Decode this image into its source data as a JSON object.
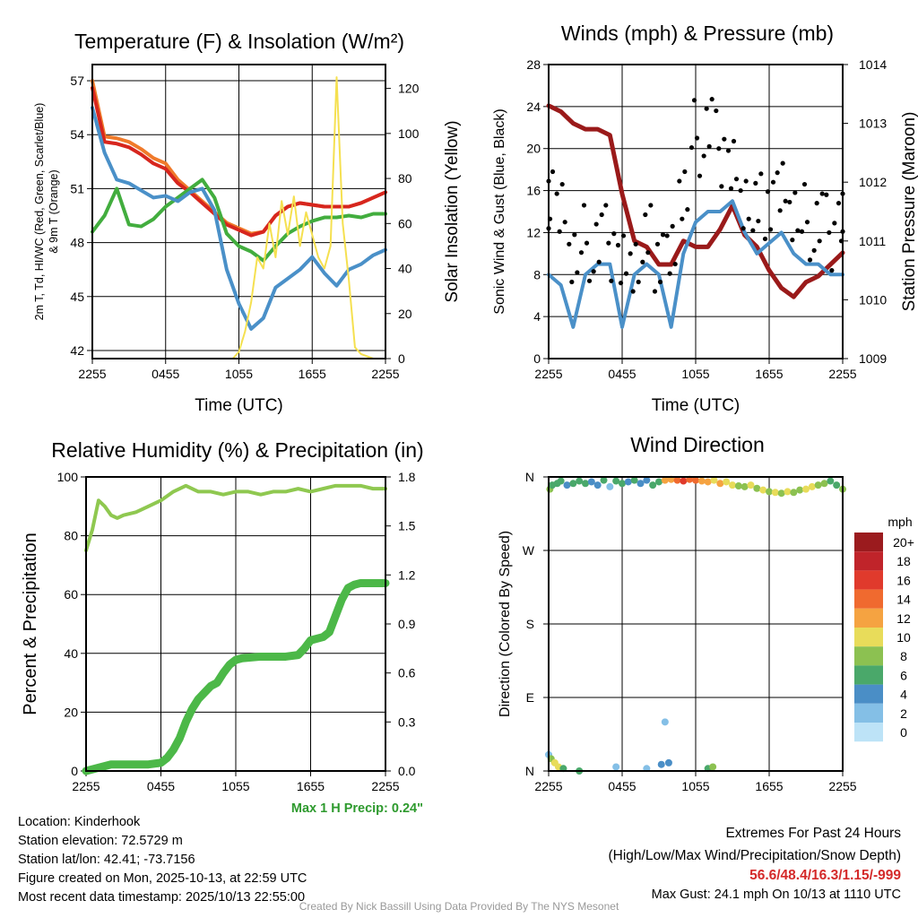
{
  "colors": {
    "red": "#d7261e",
    "orange": "#f07a2a",
    "green": "#42ad3e",
    "blue": "#4a90c8",
    "yellow": "#f5e050",
    "maroon": "#9a1a1a",
    "gust": "#000000",
    "rh": "#8fc850",
    "precip": "#4cb848",
    "maxprecip": "#2e9a2e",
    "extremes": "#d42a2a",
    "credit": "#999999"
  },
  "x_ticks": [
    "2255",
    "0455",
    "1055",
    "1655",
    "2255"
  ],
  "chart_data": [
    {
      "type": "line",
      "title": "Temperature (F) & Insolation (W/m²)",
      "xlabel": "Time (UTC)",
      "ylabel": "2m T, Td, HI/WC (Red, Green, Scarlet/Blue)",
      "ylabel2": "& 9m T (Orange)",
      "y2label": "Solar Insolation (Yellow)",
      "xlim": [
        0,
        24
      ],
      "ylim": [
        41.55,
        57.9
      ],
      "y2lim": [
        0,
        130.6
      ],
      "yticks": [
        "42",
        "45",
        "48",
        "51",
        "54",
        "57"
      ],
      "y2ticks": [
        "0",
        "20",
        "40",
        "60",
        "80",
        "100",
        "120"
      ],
      "series": [
        {
          "name": "9m T",
          "color": "orange",
          "axis": "left",
          "values": [
            57,
            53.9,
            53.8,
            53.6,
            53.2,
            52.7,
            52.4,
            51.5,
            50.9,
            50.3,
            49.7,
            49.1,
            48.8,
            48.5,
            48.6,
            49.5,
            50.0,
            50.2,
            50.1,
            50.0,
            50.0,
            50.0,
            50.2,
            50.5,
            50.8
          ]
        },
        {
          "name": "2m T",
          "color": "red",
          "axis": "left",
          "values": [
            56.6,
            53.6,
            53.5,
            53.3,
            52.9,
            52.4,
            52.1,
            51.3,
            50.8,
            50.2,
            49.6,
            49.0,
            48.7,
            48.4,
            48.6,
            49.5,
            50.0,
            50.2,
            50.1,
            50.0,
            50.0,
            50.0,
            50.2,
            50.5,
            50.8
          ]
        },
        {
          "name": "Td",
          "color": "green",
          "axis": "left",
          "values": [
            48.6,
            49.5,
            51.0,
            49.0,
            48.9,
            49.3,
            50.0,
            50.5,
            51.0,
            51.5,
            50.5,
            48.5,
            47.8,
            47.5,
            47.0,
            47.8,
            48.5,
            48.9,
            49.2,
            49.4,
            49.4,
            49.5,
            49.4,
            49.6,
            49.6
          ]
        },
        {
          "name": "WC",
          "color": "blue",
          "axis": "left",
          "values": [
            55.5,
            53.0,
            51.5,
            51.3,
            50.9,
            50.5,
            50.6,
            50.3,
            50.8,
            51.0,
            49.8,
            46.5,
            44.6,
            43.2,
            43.8,
            45.5,
            46.0,
            46.5,
            47.2,
            46.3,
            45.6,
            46.5,
            46.8,
            47.3,
            47.6
          ]
        },
        {
          "name": "Solar",
          "color": "yellow",
          "axis": "right",
          "x": [
            0,
            11.5,
            12,
            12.5,
            13,
            13.5,
            14,
            14.5,
            15,
            15.5,
            16,
            16.5,
            17,
            17.5,
            18,
            18.5,
            19,
            19.5,
            20,
            20.5,
            21,
            21.5,
            22,
            23,
            24
          ],
          "values": [
            0,
            0,
            3,
            12,
            25,
            45,
            40,
            60,
            45,
            70,
            55,
            72,
            50,
            65,
            55,
            45,
            40,
            50,
            125,
            60,
            35,
            5,
            2,
            0,
            0
          ]
        }
      ]
    },
    {
      "type": "line",
      "title": "Winds (mph) & Pressure (mb)",
      "xlabel": "Time (UTC)",
      "ylabel": "Sonic Wind & Gust (Blue, Black)",
      "y2label": "Station Pressure (Maroon)",
      "xlim": [
        0,
        24
      ],
      "ylim": [
        0,
        28
      ],
      "y2lim": [
        1009,
        1014
      ],
      "yticks": [
        "0",
        "4",
        "8",
        "12",
        "16",
        "20",
        "24",
        "28"
      ],
      "y2ticks": [
        "1009",
        "1010",
        "1011",
        "1012",
        "1013",
        "1014"
      ],
      "series": [
        {
          "name": "Pressure",
          "color": "maroon",
          "axis": "right",
          "values": [
            1013.3,
            1013.2,
            1013.0,
            1012.9,
            1012.9,
            1012.8,
            1011.8,
            1011.0,
            1010.9,
            1010.6,
            1010.6,
            1011.0,
            1010.9,
            1010.9,
            1011.2,
            1011.6,
            1011.1,
            1010.9,
            1010.5,
            1010.2,
            1010.05,
            1010.3,
            1010.4,
            1010.6,
            1010.8
          ]
        },
        {
          "name": "Sonic Wind",
          "color": "blue",
          "axis": "left",
          "values": [
            8,
            7,
            3,
            8,
            9,
            9,
            3,
            8,
            9,
            8,
            3,
            10,
            13,
            14,
            14,
            15,
            12,
            10,
            11,
            12,
            10,
            9,
            9,
            8,
            8
          ]
        },
        {
          "name": "Gust",
          "color": "gust",
          "axis": "left",
          "type": "scatter",
          "values": [
            16,
            13,
            10,
            11,
            11,
            11,
            9,
            10,
            11,
            10,
            9,
            16,
            21,
            22,
            20,
            18,
            16,
            14,
            15,
            15,
            14,
            13,
            13,
            12,
            13
          ]
        }
      ]
    },
    {
      "type": "line",
      "title": "Relative Humidity (%) & Precipitation (in)",
      "ylabel": "Percent & Precipitation",
      "xlim": [
        0,
        24
      ],
      "ylim": [
        0,
        100
      ],
      "y2lim": [
        0,
        1.8
      ],
      "yticks": [
        "0",
        "20",
        "40",
        "60",
        "80",
        "100"
      ],
      "y2ticks": [
        "0.0",
        "0.3",
        "0.6",
        "0.9",
        "1.2",
        "1.5",
        "1.8"
      ],
      "series": [
        {
          "name": "RH",
          "color": "rh",
          "axis": "left",
          "x": [
            0,
            0.5,
            1,
            1.5,
            2,
            2.5,
            3,
            4,
            5,
            6,
            7,
            8,
            9,
            10,
            11,
            12,
            13,
            14,
            15,
            16,
            17,
            18,
            19,
            20,
            21,
            22,
            23,
            24
          ],
          "values": [
            75,
            82,
            92,
            90,
            87,
            86,
            87,
            88,
            90,
            92,
            95,
            97,
            95,
            95,
            94,
            95,
            95,
            94,
            95,
            95,
            96,
            95,
            96,
            97,
            97,
            97,
            96,
            96
          ]
        },
        {
          "name": "Precip",
          "color": "precip",
          "axis": "right",
          "x": [
            0,
            1,
            2,
            5,
            6,
            6.5,
            7,
            7.5,
            8,
            8.5,
            9,
            9.5,
            10,
            10.5,
            11,
            11.5,
            12,
            12.5,
            14,
            16,
            17,
            17.5,
            18,
            19,
            19.5,
            20,
            20.5,
            21,
            21.5,
            22,
            24
          ],
          "values": [
            0,
            0.02,
            0.04,
            0.04,
            0.05,
            0.08,
            0.13,
            0.2,
            0.3,
            0.38,
            0.44,
            0.48,
            0.52,
            0.54,
            0.6,
            0.65,
            0.68,
            0.69,
            0.7,
            0.7,
            0.71,
            0.75,
            0.8,
            0.82,
            0.85,
            0.95,
            1.05,
            1.12,
            1.14,
            1.15,
            1.15
          ]
        }
      ],
      "annotation": "Max 1 H Precip: 0.24\""
    },
    {
      "type": "scatter",
      "title": "Wind Direction",
      "ylabel": "Direction (Colored By Speed)",
      "xlim": [
        0,
        24
      ],
      "ylim": [
        0,
        360
      ],
      "yticks": [
        "N",
        "E",
        "S",
        "W",
        "N"
      ],
      "points": [
        [
          0.1,
          345,
          8
        ],
        [
          0.3,
          350,
          6
        ],
        [
          0.7,
          352,
          7
        ],
        [
          1,
          355,
          6
        ],
        [
          1.5,
          350,
          5
        ],
        [
          2,
          352,
          7
        ],
        [
          2.5,
          355,
          6
        ],
        [
          3,
          352,
          6
        ],
        [
          3.5,
          354,
          5
        ],
        [
          4,
          350,
          4
        ],
        [
          4.5,
          356,
          6
        ],
        [
          5,
          348,
          3
        ],
        [
          5.5,
          355,
          7
        ],
        [
          6,
          352,
          6
        ],
        [
          6.5,
          354,
          5
        ],
        [
          7,
          356,
          7
        ],
        [
          7.5,
          352,
          5
        ],
        [
          8,
          356,
          4
        ],
        [
          8.5,
          350,
          6
        ],
        [
          9,
          354,
          7
        ],
        [
          9.5,
          356,
          12
        ],
        [
          10,
          357,
          13
        ],
        [
          10.5,
          356,
          15
        ],
        [
          11,
          355,
          16
        ],
        [
          11.5,
          357,
          14
        ],
        [
          12,
          356,
          15
        ],
        [
          12.5,
          355,
          12
        ],
        [
          13,
          354,
          13
        ],
        [
          13.5,
          356,
          11
        ],
        [
          14,
          352,
          12
        ],
        [
          14.5,
          354,
          10
        ],
        [
          15,
          350,
          10
        ],
        [
          15.5,
          349,
          9
        ],
        [
          16,
          348,
          8
        ],
        [
          16.5,
          350,
          11
        ],
        [
          17,
          346,
          9
        ],
        [
          17.5,
          344,
          10
        ],
        [
          18,
          342,
          8
        ],
        [
          18.5,
          341,
          10
        ],
        [
          19,
          340,
          9
        ],
        [
          19.5,
          342,
          10
        ],
        [
          20,
          341,
          8
        ],
        [
          20.5,
          344,
          9
        ],
        [
          21,
          345,
          10
        ],
        [
          21.5,
          348,
          11
        ],
        [
          22,
          350,
          9
        ],
        [
          22.5,
          352,
          8
        ],
        [
          23,
          355,
          7
        ],
        [
          23.5,
          350,
          6
        ],
        [
          24,
          345,
          8
        ],
        [
          0,
          20,
          3
        ],
        [
          0.2,
          15,
          9
        ],
        [
          0.5,
          10,
          11
        ],
        [
          0.8,
          5,
          10
        ],
        [
          1.2,
          3,
          6
        ],
        [
          2.5,
          0,
          7
        ],
        [
          5.5,
          5,
          2
        ],
        [
          8,
          3,
          3
        ],
        [
          9.2,
          8,
          4
        ],
        [
          9.5,
          60,
          2
        ],
        [
          9.8,
          10,
          4
        ],
        [
          13,
          3,
          7
        ],
        [
          13.4,
          5,
          8
        ]
      ],
      "legend": {
        "title": "mph",
        "labels": [
          "20+",
          "18",
          "16",
          "14",
          "12",
          "10",
          "8",
          "6",
          "4",
          "2",
          "0"
        ],
        "colors": [
          "#9b1b1e",
          "#c0242a",
          "#e03a2c",
          "#f06a2f",
          "#f5a341",
          "#e8dc5a",
          "#8cc151",
          "#4aa86a",
          "#4a8ec6",
          "#84bfe6",
          "#bde3f7"
        ]
      }
    }
  ],
  "footer": {
    "location": "Location: Kinderhook",
    "elevation": "Station elevation: 72.5729 m",
    "latlon": "Station lat/lon: 42.41; -73.7156",
    "created": "Figure created on Mon, 2025-10-13, at 22:59 UTC",
    "recent": "Most recent data timestamp: 2025/10/13 22:55:00",
    "extremes_title": "Extremes For Past 24 Hours",
    "extremes_sub": "(High/Low/Max Wind/Precipitation/Snow Depth)",
    "extremes_values": "56.6/48.4/16.3/1.15/-999",
    "max_gust": "Max Gust: 24.1 mph On 10/13 at 1110 UTC",
    "credit": "Created By Nick Bassill Using Data Provided By The NYS Mesonet"
  }
}
